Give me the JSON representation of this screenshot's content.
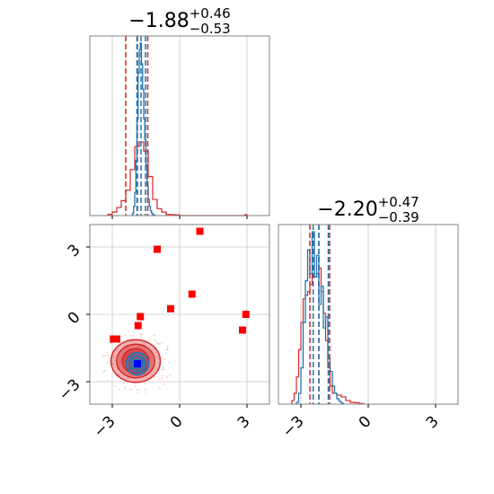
{
  "chart_data": {
    "type": "corner",
    "parameters": [
      "p0",
      "p1"
    ],
    "axis_range": [
      -4.0,
      4.0
    ],
    "ticks": [
      -3,
      0,
      3
    ],
    "tick_labels": [
      "−3",
      "0",
      "3"
    ],
    "grid": true,
    "titles": [
      {
        "base": "−1.88",
        "sup": "+0.46",
        "sub": "−0.53"
      },
      {
        "base": "−2.20",
        "sup": "+0.47",
        "sub": "−0.39"
      }
    ],
    "colors": {
      "blue": "#1f77b4",
      "red": "#d62728",
      "square": "#ff0000",
      "truth": "#0000ff"
    },
    "marginals": [
      {
        "blue": {
          "edges": [
            -2.1,
            -2.05,
            -2.0,
            -1.95,
            -1.9,
            -1.85,
            -1.8,
            -1.75,
            -1.7,
            -1.65,
            -1.6,
            -1.55,
            -1.5,
            -1.45,
            -1.4,
            -1.35,
            -1.3,
            -1.25,
            -1.2,
            -1.15,
            -1.1
          ],
          "values": [
            0.01,
            0.04,
            0.1,
            0.24,
            0.42,
            0.62,
            0.72,
            0.75,
            0.66,
            0.55,
            0.42,
            0.33,
            0.22,
            0.13,
            0.07,
            0.04,
            0.02,
            0.01,
            0.005,
            0.002
          ],
          "quantiles": [
            -1.9,
            -1.72,
            -1.52
          ]
        },
        "red": {
          "edges": [
            -3.2,
            -3.0,
            -2.8,
            -2.6,
            -2.4,
            -2.2,
            -2.0,
            -1.8,
            -1.6,
            -1.4,
            -1.2,
            -1.0,
            -0.8,
            -0.6,
            -0.4,
            -0.2,
            0.0,
            2.9,
            3.0
          ],
          "values": [
            0.005,
            0.015,
            0.035,
            0.065,
            0.11,
            0.2,
            0.3,
            0.32,
            0.28,
            0.17,
            0.07,
            0.03,
            0.015,
            0.005,
            0.004,
            0.003,
            0.0,
            0.004
          ],
          "quantiles": [
            -2.4,
            -1.88,
            -1.42
          ]
        }
      },
      {
        "blue": {
          "edges": [
            -3.2,
            -3.1,
            -3.0,
            -2.9,
            -2.8,
            -2.7,
            -2.6,
            -2.5,
            -2.4,
            -2.3,
            -2.2,
            -2.1,
            -2.0,
            -1.9,
            -1.8,
            -1.7,
            -1.6,
            -1.5,
            -1.4,
            -1.3,
            -1.2,
            -1.1
          ],
          "values": [
            0.01,
            0.06,
            0.2,
            0.45,
            0.68,
            0.85,
            0.72,
            0.95,
            0.7,
            0.82,
            0.55,
            0.65,
            0.42,
            0.48,
            0.25,
            0.18,
            0.1,
            0.06,
            0.03,
            0.015,
            0.005
          ],
          "quantiles": [
            -2.45,
            -2.2,
            -1.78
          ]
        },
        "red": {
          "edges": [
            -3.4,
            -3.3,
            -3.2,
            -3.1,
            -3.0,
            -2.9,
            -2.8,
            -2.7,
            -2.6,
            -2.5,
            -2.4,
            -2.3,
            -2.2,
            -2.1,
            -2.0,
            -1.9,
            -1.8,
            -1.7,
            -1.6,
            -1.4,
            -1.2,
            -1.0,
            -0.8,
            -0.6,
            -0.4,
            -0.2
          ],
          "values": [
            0.02,
            0.06,
            0.15,
            0.3,
            0.45,
            0.58,
            0.6,
            0.62,
            0.66,
            0.72,
            0.7,
            0.72,
            0.75,
            0.62,
            0.5,
            0.35,
            0.2,
            0.1,
            0.06,
            0.05,
            0.04,
            0.02,
            0.01,
            0.008,
            0.003
          ],
          "quantiles": [
            -2.6,
            -2.2,
            -1.72
          ]
        }
      }
    ],
    "joint": {
      "center": [
        -1.88,
        -2.2
      ],
      "truth": [
        -1.88,
        -2.2
      ],
      "red_squares": [
        [
          0.9,
          3.7
        ],
        [
          -1.0,
          2.9
        ],
        [
          0.55,
          0.9
        ],
        [
          -0.4,
          0.25
        ],
        [
          -1.75,
          -0.1
        ],
        [
          -1.85,
          -0.5
        ],
        [
          -2.8,
          -1.1
        ],
        [
          -2.95,
          -1.1
        ],
        [
          2.95,
          0.0
        ],
        [
          2.8,
          -0.7
        ]
      ],
      "red_contours": [
        {
          "rx": 1.1,
          "ry": 0.95,
          "opacity": 0.35
        },
        {
          "rx": 0.85,
          "ry": 0.75,
          "opacity": 0.45
        },
        {
          "rx": 0.6,
          "ry": 0.55,
          "opacity": 0.6
        }
      ],
      "blue_contours": [
        {
          "rx": 0.5,
          "ry": 0.5
        },
        {
          "rx": 0.36,
          "ry": 0.35
        },
        {
          "rx": 0.22,
          "ry": 0.21
        }
      ]
    }
  }
}
